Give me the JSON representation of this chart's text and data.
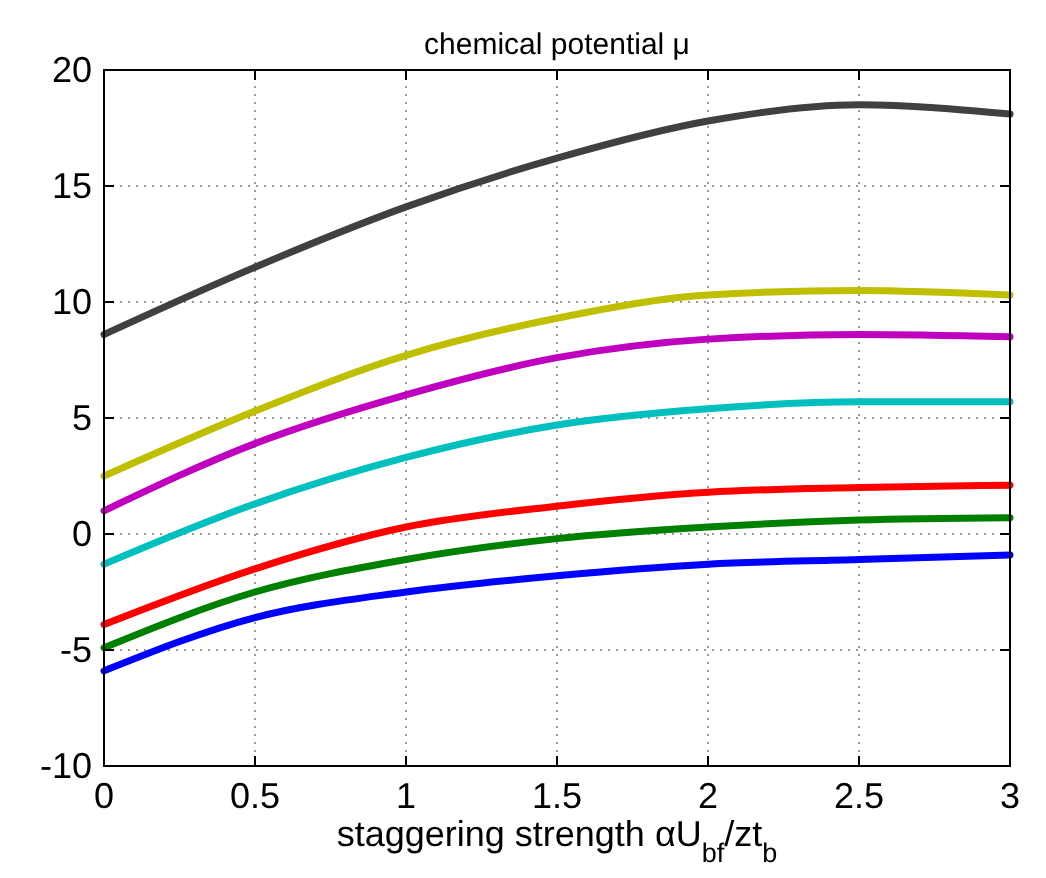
{
  "chart_data": {
    "type": "line",
    "title": "chemical potential μ",
    "xlabel": "staggering strength αU$_{bf}$/zt$_{b}$",
    "x": [
      0,
      0.5,
      1,
      1.5,
      2,
      2.5,
      3
    ],
    "xlim": [
      0,
      3
    ],
    "xticks": [
      0,
      0.5,
      1,
      1.5,
      2,
      2.5,
      3
    ],
    "ylim": [
      -10,
      20
    ],
    "yticks": [
      -10,
      -5,
      0,
      5,
      10,
      15,
      20
    ],
    "grid": true,
    "marker": "none",
    "line_style": "solid",
    "series": [
      {
        "color": "#404040",
        "values": [
          8.6,
          11.5,
          14.1,
          16.2,
          17.8,
          18.5,
          18.1
        ]
      },
      {
        "color": "#bfbf00",
        "values": [
          2.5,
          5.3,
          7.7,
          9.3,
          10.3,
          10.5,
          10.3
        ]
      },
      {
        "color": "#bf00bf",
        "values": [
          1.0,
          3.9,
          6.0,
          7.6,
          8.4,
          8.6,
          8.5
        ]
      },
      {
        "color": "#00bfbf",
        "values": [
          -1.3,
          1.3,
          3.3,
          4.7,
          5.4,
          5.7,
          5.7
        ]
      },
      {
        "color": "#ff0000",
        "values": [
          -3.9,
          -1.5,
          0.3,
          1.2,
          1.8,
          2.0,
          2.1
        ]
      },
      {
        "color": "#008000",
        "values": [
          -4.9,
          -2.5,
          -1.1,
          -0.2,
          0.3,
          0.6,
          0.7
        ]
      },
      {
        "color": "#0000ff",
        "values": [
          -5.9,
          -3.6,
          -2.5,
          -1.8,
          -1.3,
          -1.1,
          -0.9
        ]
      }
    ]
  }
}
